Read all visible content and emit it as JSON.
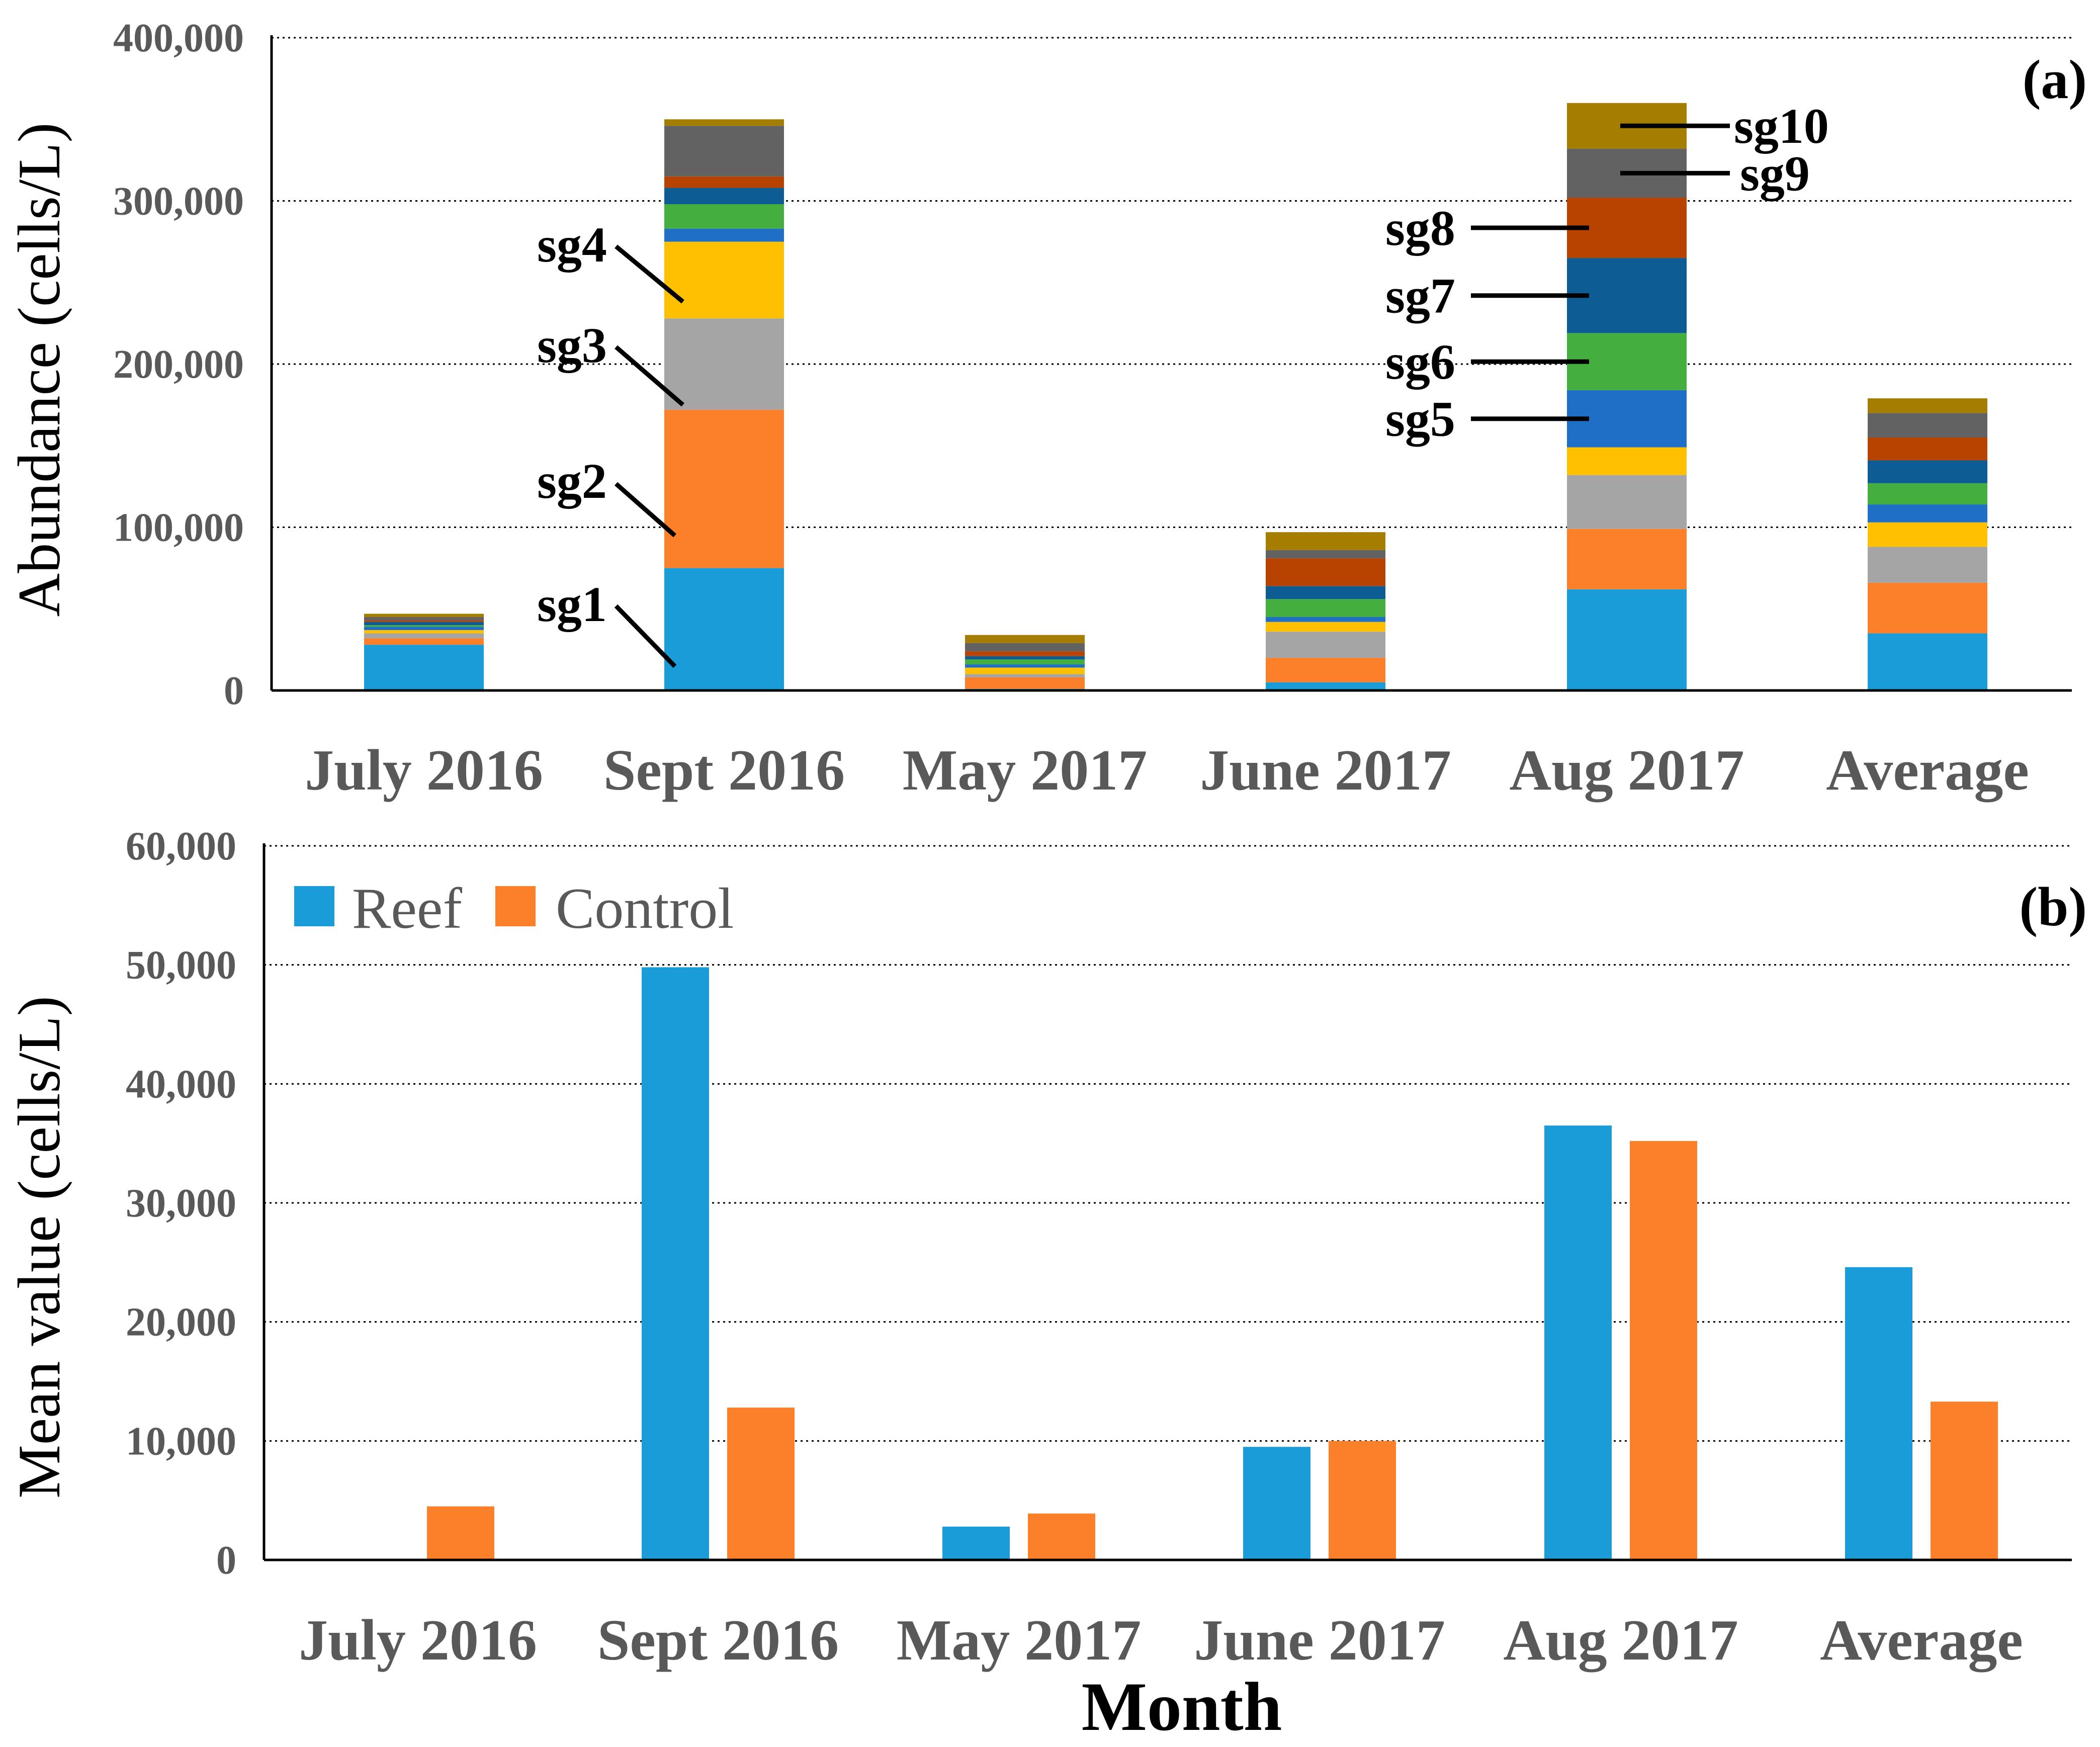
{
  "colors": {
    "sg1": "#1a9cd8",
    "sg2": "#fb8029",
    "sg3": "#a5a5a5",
    "sg4": "#fec000",
    "sg5": "#1f6fc6",
    "sg6": "#44af3e",
    "sg7": "#0d5c94",
    "sg8": "#b84301",
    "sg9": "#626262",
    "sg10": "#a57d00",
    "reef": "#1a9cd8",
    "control": "#fb8029"
  },
  "chart_data": [
    {
      "type": "bar",
      "stacked": true,
      "panel_label": "(a)",
      "xlabel": "",
      "ylabel": "Abundance (cells/L)",
      "ylim": [
        0,
        400000
      ],
      "yticks": [
        "0",
        "100,000",
        "200,000",
        "300,000",
        "400,000"
      ],
      "grid": true,
      "categories": [
        "July 2016",
        "Sept 2016",
        "May 2017",
        "June 2017",
        "Aug 2017",
        "Average"
      ],
      "series": [
        {
          "name": "sg1",
          "values": [
            28000,
            75000,
            1000,
            5000,
            62000,
            35000
          ]
        },
        {
          "name": "sg2",
          "values": [
            4000,
            97000,
            7000,
            15000,
            37000,
            31000
          ]
        },
        {
          "name": "sg3",
          "values": [
            3000,
            56000,
            2000,
            16000,
            33000,
            22000
          ]
        },
        {
          "name": "sg4",
          "values": [
            2000,
            47000,
            4000,
            6000,
            17000,
            15000
          ]
        },
        {
          "name": "sg5",
          "values": [
            2000,
            8000,
            2000,
            3000,
            35000,
            11000
          ]
        },
        {
          "name": "sg6",
          "values": [
            1000,
            15000,
            3000,
            11000,
            35000,
            13000
          ]
        },
        {
          "name": "sg7",
          "values": [
            2000,
            10000,
            2000,
            8000,
            46000,
            14000
          ]
        },
        {
          "name": "sg8",
          "values": [
            1000,
            7000,
            3000,
            17000,
            37000,
            14000
          ]
        },
        {
          "name": "sg9",
          "values": [
            2000,
            31000,
            5000,
            5000,
            30000,
            15000
          ]
        },
        {
          "name": "sg10",
          "values": [
            2000,
            4000,
            5000,
            11000,
            28000,
            9000
          ]
        }
      ],
      "annotations": [
        "sg1",
        "sg2",
        "sg3",
        "sg4",
        "sg5",
        "sg6",
        "sg7",
        "sg8",
        "sg9",
        "sg10"
      ]
    },
    {
      "type": "bar",
      "stacked": false,
      "panel_label": "(b)",
      "xlabel": "Month",
      "ylabel": "Mean value (cells/L)",
      "ylim": [
        0,
        60000
      ],
      "yticks": [
        "0",
        "10,000",
        "20,000",
        "30,000",
        "40,000",
        "50,000",
        "60,000"
      ],
      "grid": true,
      "legend_position": "top-left",
      "categories": [
        "July 2016",
        "Sept 2016",
        "May 2017",
        "June 2017",
        "Aug 2017",
        "Average"
      ],
      "series": [
        {
          "name": "Reef",
          "values": [
            0,
            49800,
            2800,
            9500,
            36500,
            24600
          ]
        },
        {
          "name": "Control",
          "values": [
            4500,
            12800,
            3900,
            10000,
            35200,
            13300
          ]
        }
      ]
    }
  ]
}
